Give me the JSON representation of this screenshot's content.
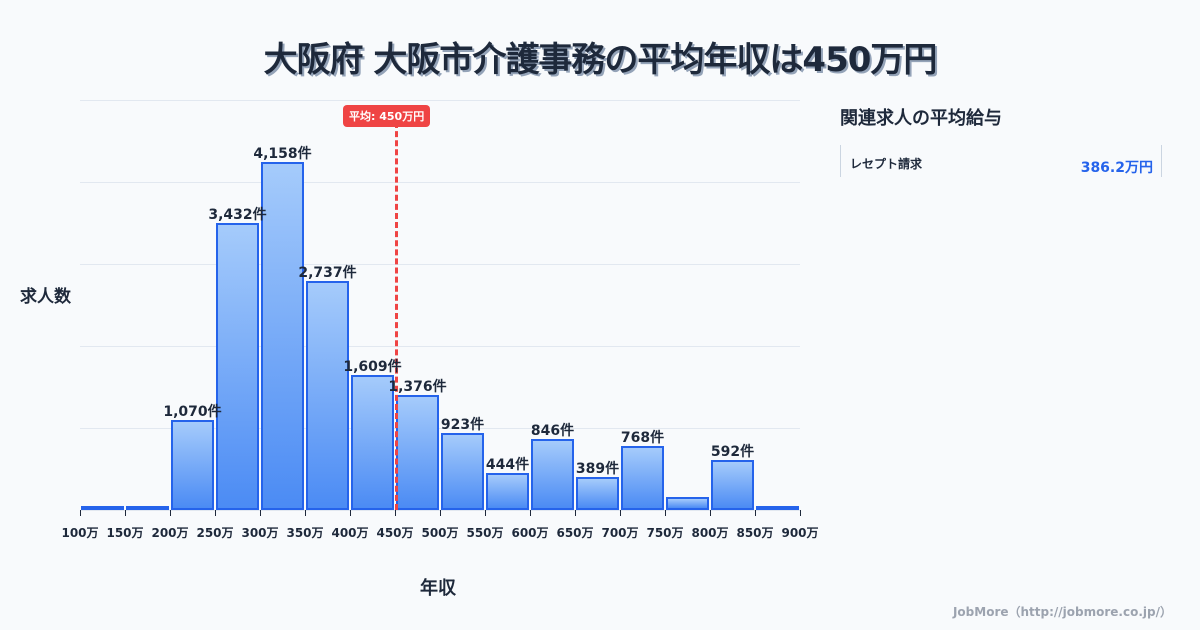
{
  "title": "大阪府 大阪市介護事務の平均年収は450万円",
  "average": {
    "label": "平均: 450万円",
    "value": 450
  },
  "axes": {
    "ylabel": "求人数",
    "xlabel": "年収"
  },
  "side_panel": {
    "title": "関連求人の平均給与",
    "items": [
      {
        "name": "レセプト請求",
        "value": "386.2万円"
      }
    ]
  },
  "footer": "JobMore（http://jobmore.co.jp/）",
  "colors": {
    "bar_fill_top": "#a5cbfb",
    "bar_fill_bottom": "#4b8bf4",
    "bar_border": "#2563eb",
    "average_line": "#ef4444",
    "accent_value": "#2563eb"
  },
  "chart_data": {
    "type": "bar",
    "title": "大阪府 大阪市介護事務の平均年収は450万円",
    "xlabel": "年収",
    "ylabel": "求人数",
    "tick_labels": [
      "100万",
      "150万",
      "200万",
      "250万",
      "300万",
      "350万",
      "400万",
      "450万",
      "500万",
      "550万",
      "600万",
      "650万",
      "700万",
      "750万",
      "800万",
      "850万",
      "900万"
    ],
    "categories": [
      "100-150万",
      "150-200万",
      "200-250万",
      "250-300万",
      "300-350万",
      "350-400万",
      "400-450万",
      "450-500万",
      "500-550万",
      "550-600万",
      "600-650万",
      "650-700万",
      "700-750万",
      "750-800万",
      "800-850万",
      "850-900万"
    ],
    "values": [
      20,
      40,
      1070,
      3432,
      4158,
      2737,
      1609,
      1376,
      923,
      444,
      846,
      389,
      768,
      150,
      592,
      50
    ],
    "data_labels": [
      "",
      "",
      "1,070件",
      "3,432件",
      "4,158件",
      "2,737件",
      "1,609件",
      "1,376件",
      "923件",
      "444件",
      "846件",
      "389件",
      "768件",
      "",
      "592件",
      ""
    ],
    "ylim": [
      0,
      4900
    ],
    "grid": true,
    "annotations": [
      {
        "type": "vline",
        "x": 450,
        "label": "平均: 450万円"
      }
    ]
  }
}
